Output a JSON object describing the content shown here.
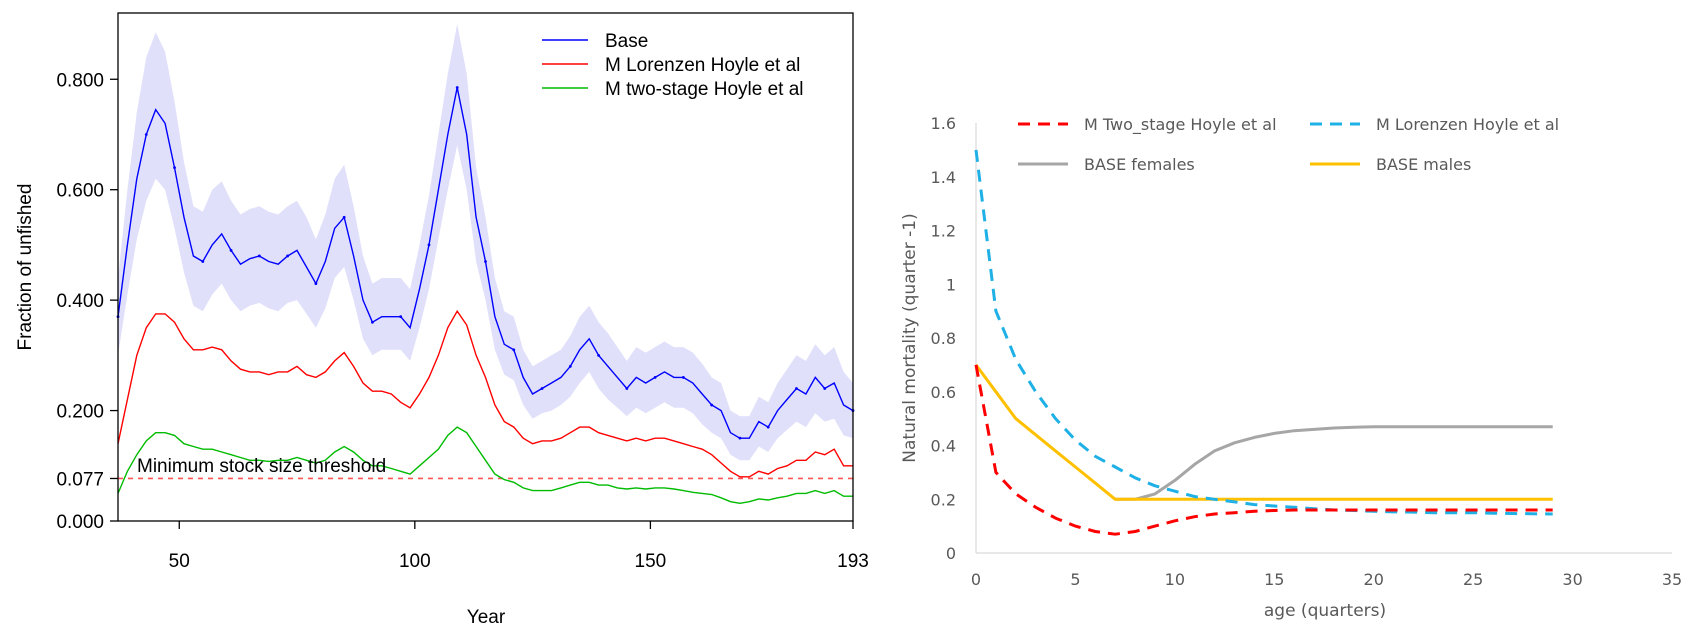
{
  "chart_data": [
    {
      "type": "line",
      "title": "",
      "xlabel": "Year",
      "ylabel": "Fraction of unfished",
      "xlim": [
        37,
        193
      ],
      "ylim": [
        0,
        0.92
      ],
      "xticks": [
        "50",
        "100",
        "150",
        "193"
      ],
      "xtick_values": [
        50,
        100,
        150,
        193
      ],
      "yticks": [
        "0.000",
        "0.077",
        "0.200",
        "0.400",
        "0.600",
        "0.800"
      ],
      "ytick_values": [
        0,
        0.077,
        0.2,
        0.4,
        0.6,
        0.8
      ],
      "legend_position": "top-right",
      "annotation": {
        "text": "Minimum stock size threshold",
        "value": 0.077,
        "color": "#ff0000"
      },
      "series": [
        {
          "name": "Base",
          "color": "#0000ff",
          "band_color": "#e0e0fb",
          "x": [
            37,
            39,
            41,
            43,
            45,
            47,
            49,
            51,
            53,
            55,
            57,
            59,
            61,
            63,
            65,
            67,
            69,
            71,
            73,
            75,
            77,
            79,
            81,
            83,
            85,
            87,
            89,
            91,
            93,
            95,
            97,
            99,
            101,
            103,
            105,
            107,
            109,
            111,
            113,
            115,
            117,
            119,
            121,
            123,
            125,
            127,
            129,
            131,
            133,
            135,
            137,
            139,
            141,
            143,
            145,
            147,
            149,
            151,
            153,
            155,
            157,
            159,
            161,
            163,
            165,
            167,
            169,
            171,
            173,
            175,
            177,
            179,
            181,
            183,
            185,
            187,
            189,
            191,
            193
          ],
          "y": [
            0.37,
            0.5,
            0.62,
            0.7,
            0.745,
            0.72,
            0.64,
            0.55,
            0.48,
            0.47,
            0.5,
            0.52,
            0.49,
            0.465,
            0.475,
            0.48,
            0.47,
            0.465,
            0.48,
            0.49,
            0.46,
            0.43,
            0.47,
            0.53,
            0.55,
            0.48,
            0.4,
            0.36,
            0.37,
            0.37,
            0.37,
            0.35,
            0.42,
            0.5,
            0.6,
            0.7,
            0.785,
            0.7,
            0.55,
            0.47,
            0.37,
            0.32,
            0.31,
            0.26,
            0.23,
            0.24,
            0.25,
            0.26,
            0.28,
            0.31,
            0.33,
            0.3,
            0.28,
            0.26,
            0.24,
            0.26,
            0.25,
            0.26,
            0.27,
            0.26,
            0.26,
            0.25,
            0.23,
            0.21,
            0.2,
            0.16,
            0.15,
            0.15,
            0.18,
            0.17,
            0.2,
            0.22,
            0.24,
            0.23,
            0.26,
            0.24,
            0.25,
            0.21,
            0.2
          ],
          "lower": [
            0.3,
            0.41,
            0.51,
            0.58,
            0.62,
            0.6,
            0.53,
            0.45,
            0.39,
            0.38,
            0.41,
            0.43,
            0.4,
            0.38,
            0.39,
            0.395,
            0.385,
            0.38,
            0.395,
            0.4,
            0.375,
            0.35,
            0.385,
            0.44,
            0.46,
            0.4,
            0.33,
            0.3,
            0.31,
            0.31,
            0.31,
            0.29,
            0.35,
            0.42,
            0.51,
            0.6,
            0.68,
            0.6,
            0.47,
            0.4,
            0.31,
            0.265,
            0.255,
            0.21,
            0.185,
            0.195,
            0.2,
            0.21,
            0.225,
            0.25,
            0.27,
            0.24,
            0.22,
            0.205,
            0.19,
            0.205,
            0.195,
            0.205,
            0.215,
            0.205,
            0.205,
            0.195,
            0.175,
            0.16,
            0.15,
            0.12,
            0.11,
            0.11,
            0.135,
            0.125,
            0.15,
            0.165,
            0.18,
            0.17,
            0.195,
            0.18,
            0.185,
            0.155,
            0.15
          ],
          "upper": [
            0.44,
            0.6,
            0.74,
            0.84,
            0.885,
            0.85,
            0.76,
            0.65,
            0.57,
            0.56,
            0.6,
            0.615,
            0.58,
            0.555,
            0.565,
            0.57,
            0.56,
            0.555,
            0.57,
            0.58,
            0.55,
            0.51,
            0.555,
            0.62,
            0.645,
            0.57,
            0.48,
            0.43,
            0.44,
            0.44,
            0.44,
            0.42,
            0.5,
            0.59,
            0.7,
            0.81,
            0.9,
            0.81,
            0.64,
            0.55,
            0.44,
            0.38,
            0.37,
            0.31,
            0.28,
            0.29,
            0.3,
            0.31,
            0.335,
            0.37,
            0.39,
            0.36,
            0.34,
            0.315,
            0.29,
            0.315,
            0.305,
            0.315,
            0.325,
            0.315,
            0.315,
            0.305,
            0.285,
            0.26,
            0.25,
            0.2,
            0.19,
            0.19,
            0.225,
            0.215,
            0.25,
            0.275,
            0.3,
            0.29,
            0.32,
            0.3,
            0.315,
            0.27,
            0.25
          ]
        },
        {
          "name": "M Lorenzen Hoyle et al",
          "color": "#ff0000",
          "x": [
            37,
            39,
            41,
            43,
            45,
            47,
            49,
            51,
            53,
            55,
            57,
            59,
            61,
            63,
            65,
            67,
            69,
            71,
            73,
            75,
            77,
            79,
            81,
            83,
            85,
            87,
            89,
            91,
            93,
            95,
            97,
            99,
            101,
            103,
            105,
            107,
            109,
            111,
            113,
            115,
            117,
            119,
            121,
            123,
            125,
            127,
            129,
            131,
            133,
            135,
            137,
            139,
            141,
            143,
            145,
            147,
            149,
            151,
            153,
            155,
            157,
            159,
            161,
            163,
            165,
            167,
            169,
            171,
            173,
            175,
            177,
            179,
            181,
            183,
            185,
            187,
            189,
            191,
            193
          ],
          "y": [
            0.14,
            0.22,
            0.3,
            0.35,
            0.375,
            0.375,
            0.36,
            0.33,
            0.31,
            0.31,
            0.315,
            0.31,
            0.29,
            0.275,
            0.27,
            0.27,
            0.265,
            0.27,
            0.27,
            0.28,
            0.265,
            0.26,
            0.27,
            0.29,
            0.305,
            0.28,
            0.25,
            0.235,
            0.235,
            0.23,
            0.215,
            0.205,
            0.23,
            0.26,
            0.3,
            0.35,
            0.38,
            0.355,
            0.3,
            0.26,
            0.21,
            0.18,
            0.17,
            0.15,
            0.14,
            0.145,
            0.145,
            0.15,
            0.16,
            0.17,
            0.17,
            0.16,
            0.155,
            0.15,
            0.145,
            0.15,
            0.145,
            0.15,
            0.15,
            0.145,
            0.14,
            0.135,
            0.13,
            0.12,
            0.105,
            0.09,
            0.08,
            0.08,
            0.09,
            0.085,
            0.095,
            0.1,
            0.11,
            0.11,
            0.125,
            0.12,
            0.13,
            0.1,
            0.1
          ]
        },
        {
          "name": "M two-stage Hoyle et al",
          "color": "#00bb00",
          "x": [
            37,
            39,
            41,
            43,
            45,
            47,
            49,
            51,
            53,
            55,
            57,
            59,
            61,
            63,
            65,
            67,
            69,
            71,
            73,
            75,
            77,
            79,
            81,
            83,
            85,
            87,
            89,
            91,
            93,
            95,
            97,
            99,
            101,
            103,
            105,
            107,
            109,
            111,
            113,
            115,
            117,
            119,
            121,
            123,
            125,
            127,
            129,
            131,
            133,
            135,
            137,
            139,
            141,
            143,
            145,
            147,
            149,
            151,
            153,
            155,
            157,
            159,
            161,
            163,
            165,
            167,
            169,
            171,
            173,
            175,
            177,
            179,
            181,
            183,
            185,
            187,
            189,
            191,
            193
          ],
          "y": [
            0.05,
            0.09,
            0.12,
            0.145,
            0.16,
            0.16,
            0.155,
            0.14,
            0.135,
            0.13,
            0.13,
            0.125,
            0.12,
            0.115,
            0.11,
            0.11,
            0.108,
            0.11,
            0.11,
            0.115,
            0.11,
            0.105,
            0.11,
            0.125,
            0.135,
            0.125,
            0.11,
            0.1,
            0.1,
            0.095,
            0.09,
            0.085,
            0.1,
            0.115,
            0.13,
            0.155,
            0.17,
            0.16,
            0.135,
            0.11,
            0.085,
            0.075,
            0.07,
            0.06,
            0.055,
            0.055,
            0.055,
            0.06,
            0.065,
            0.07,
            0.07,
            0.065,
            0.065,
            0.06,
            0.058,
            0.06,
            0.058,
            0.06,
            0.06,
            0.058,
            0.055,
            0.052,
            0.05,
            0.048,
            0.042,
            0.035,
            0.032,
            0.035,
            0.04,
            0.038,
            0.042,
            0.045,
            0.05,
            0.05,
            0.055,
            0.05,
            0.055,
            0.045,
            0.045
          ]
        }
      ]
    },
    {
      "type": "line",
      "title": "",
      "xlabel": "age (quarters)",
      "ylabel": "Natural mortality (quarter -1)",
      "xlim": [
        0,
        35
      ],
      "ylim": [
        0,
        1.6
      ],
      "xticks": [
        "0",
        "5",
        "10",
        "15",
        "20",
        "25",
        "30",
        "35"
      ],
      "xtick_values": [
        0,
        5,
        10,
        15,
        20,
        25,
        30,
        35
      ],
      "yticks": [
        "0",
        "0.2",
        "0.4",
        "0.6",
        "0.8",
        "1",
        "1.2",
        "1.4",
        "1.6"
      ],
      "ytick_values": [
        0,
        0.2,
        0.4,
        0.6,
        0.8,
        1.0,
        1.2,
        1.4,
        1.6
      ],
      "legend_position": "top",
      "series": [
        {
          "name": "M Two_stage Hoyle et al",
          "color": "#ff0000",
          "dash": true,
          "x": [
            0,
            1,
            2,
            3,
            4,
            5,
            6,
            7,
            8,
            9,
            10,
            11,
            12,
            13,
            14,
            15,
            16,
            17,
            18,
            19,
            20,
            21,
            22,
            23,
            24,
            25,
            26,
            27,
            28,
            29
          ],
          "y": [
            0.7,
            0.3,
            0.22,
            0.17,
            0.13,
            0.1,
            0.08,
            0.07,
            0.08,
            0.1,
            0.12,
            0.135,
            0.145,
            0.15,
            0.155,
            0.158,
            0.16,
            0.16,
            0.16,
            0.16,
            0.16,
            0.16,
            0.16,
            0.16,
            0.16,
            0.16,
            0.16,
            0.16,
            0.16,
            0.16
          ]
        },
        {
          "name": "M Lorenzen Hoyle et al",
          "color": "#1fb0e6",
          "dash": true,
          "x": [
            0,
            1,
            2,
            3,
            4,
            5,
            6,
            7,
            8,
            9,
            10,
            11,
            12,
            13,
            14,
            15,
            16,
            17,
            18,
            19,
            20,
            21,
            22,
            23,
            24,
            25,
            26,
            27,
            28,
            29
          ],
          "y": [
            1.5,
            0.9,
            0.72,
            0.6,
            0.5,
            0.42,
            0.36,
            0.32,
            0.28,
            0.25,
            0.23,
            0.21,
            0.2,
            0.19,
            0.18,
            0.175,
            0.17,
            0.165,
            0.16,
            0.158,
            0.155,
            0.153,
            0.152,
            0.15,
            0.15,
            0.15,
            0.148,
            0.147,
            0.146,
            0.145
          ]
        },
        {
          "name": "BASE females",
          "color": "#a6a6a6",
          "dash": false,
          "x": [
            7,
            8,
            9,
            10,
            11,
            12,
            13,
            14,
            15,
            16,
            17,
            18,
            19,
            20,
            21,
            22,
            23,
            24,
            25,
            26,
            27,
            28,
            29
          ],
          "y": [
            0.2,
            0.2,
            0.22,
            0.27,
            0.33,
            0.38,
            0.41,
            0.43,
            0.445,
            0.455,
            0.46,
            0.465,
            0.468,
            0.47,
            0.47,
            0.47,
            0.47,
            0.47,
            0.47,
            0.47,
            0.47,
            0.47,
            0.47
          ]
        },
        {
          "name": "BASE males",
          "color": "#ffc000",
          "dash": false,
          "x": [
            0,
            1,
            2,
            3,
            4,
            5,
            6,
            7,
            8,
            9,
            10,
            11,
            12,
            13,
            14,
            15,
            16,
            17,
            18,
            19,
            20,
            21,
            22,
            23,
            24,
            25,
            26,
            27,
            28,
            29
          ],
          "y": [
            0.7,
            0.6,
            0.5,
            0.44,
            0.38,
            0.32,
            0.26,
            0.2,
            0.2,
            0.2,
            0.2,
            0.2,
            0.2,
            0.2,
            0.2,
            0.2,
            0.2,
            0.2,
            0.2,
            0.2,
            0.2,
            0.2,
            0.2,
            0.2,
            0.2,
            0.2,
            0.2,
            0.2,
            0.2,
            0.2
          ]
        }
      ]
    }
  ]
}
